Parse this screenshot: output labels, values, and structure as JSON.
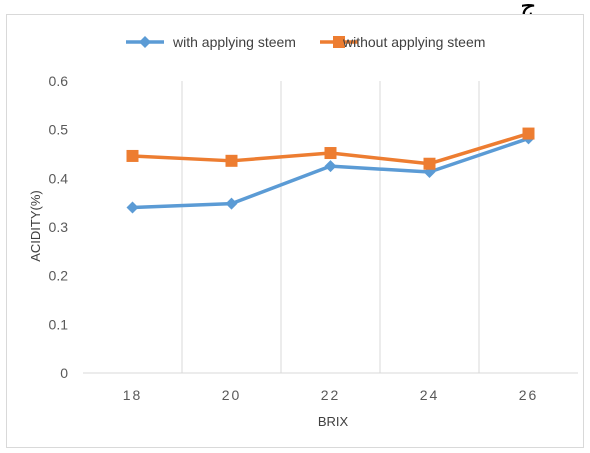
{
  "page": {
    "corner_glyph": "ج"
  },
  "chart_data": {
    "type": "line",
    "title": "",
    "xlabel": "BRIX",
    "ylabel": "ACIDITY(%)",
    "categories": [
      "18",
      "20",
      "22",
      "24",
      "26"
    ],
    "ylim": [
      0,
      0.6
    ],
    "yticks": [
      "0",
      "0.1",
      "0.2",
      "0.3",
      "0.4",
      "0.5",
      "0.6"
    ],
    "grid": "vertical",
    "legend": "top",
    "series": [
      {
        "name": "with applying steem",
        "values": [
          0.34,
          0.348,
          0.425,
          0.413,
          0.482
        ],
        "color": "#5b9bd5",
        "marker": "diamond"
      },
      {
        "name": "without applying steem",
        "values": [
          0.446,
          0.436,
          0.452,
          0.43,
          0.492
        ],
        "color": "#ed7d31",
        "marker": "square"
      }
    ]
  }
}
